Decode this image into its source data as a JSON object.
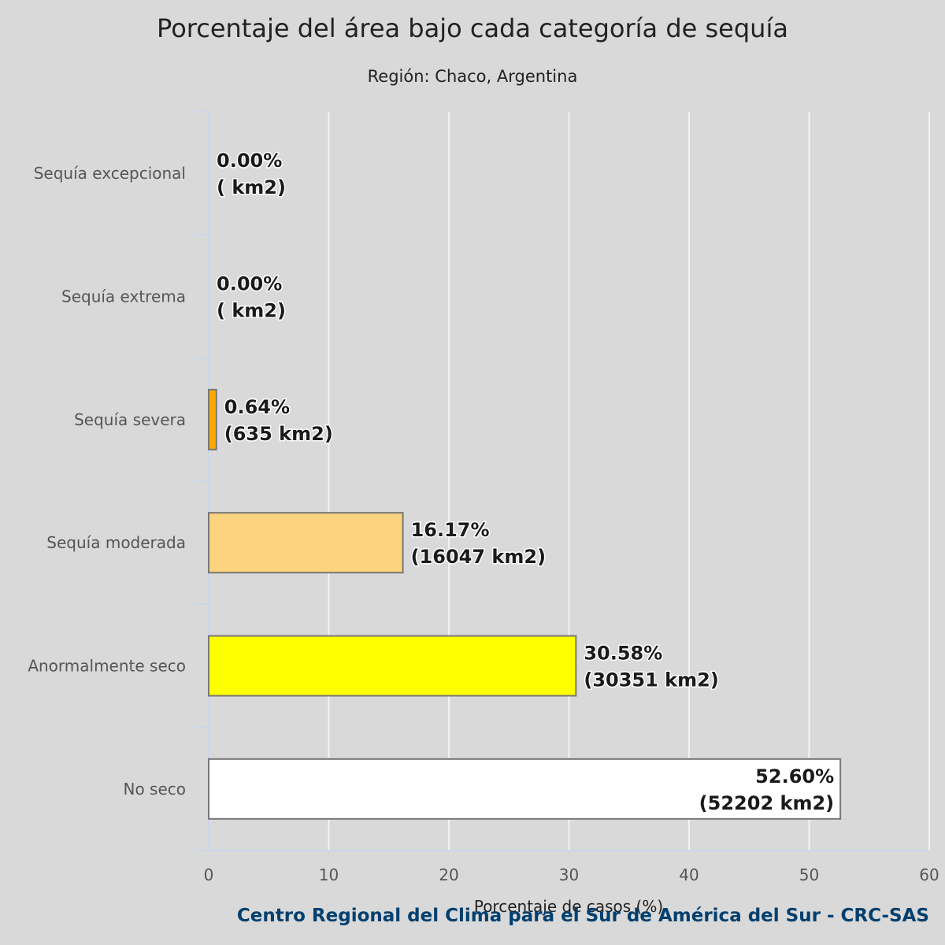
{
  "chart_data": {
    "type": "bar",
    "orientation": "horizontal",
    "title": "Porcentaje del área bajo cada categoría de sequía",
    "subtitle": "Región: Chaco, Argentina",
    "xlabel": "Porcentaje de casos (%)",
    "xlim": [
      0,
      60
    ],
    "xticks": [
      0,
      10,
      20,
      30,
      40,
      50,
      60
    ],
    "grid": true,
    "categories": [
      "Sequía excepcional",
      "Sequía extrema",
      "Sequía severa",
      "Sequía moderada",
      "Anormalmente seco",
      "No seco"
    ],
    "values": [
      0.0,
      0.0,
      0.64,
      16.17,
      30.58,
      52.6
    ],
    "data_labels": [
      [
        "0.00%",
        "( km2)"
      ],
      [
        "0.00%",
        "( km2)"
      ],
      [
        "0.64%",
        "(635 km2)"
      ],
      [
        "16.17%",
        "(16047 km2)"
      ],
      [
        "30.58%",
        "(30351 km2)"
      ],
      [
        "52.60%",
        "(52202 km2)"
      ]
    ],
    "colors": [
      "#730000",
      "#e60000",
      "#ffaa00",
      "#fcd37f",
      "#ffff00",
      "#ffffff"
    ],
    "credit": "Centro Regional del Clima para el Sur de América del Sur - CRC-SAS"
  }
}
